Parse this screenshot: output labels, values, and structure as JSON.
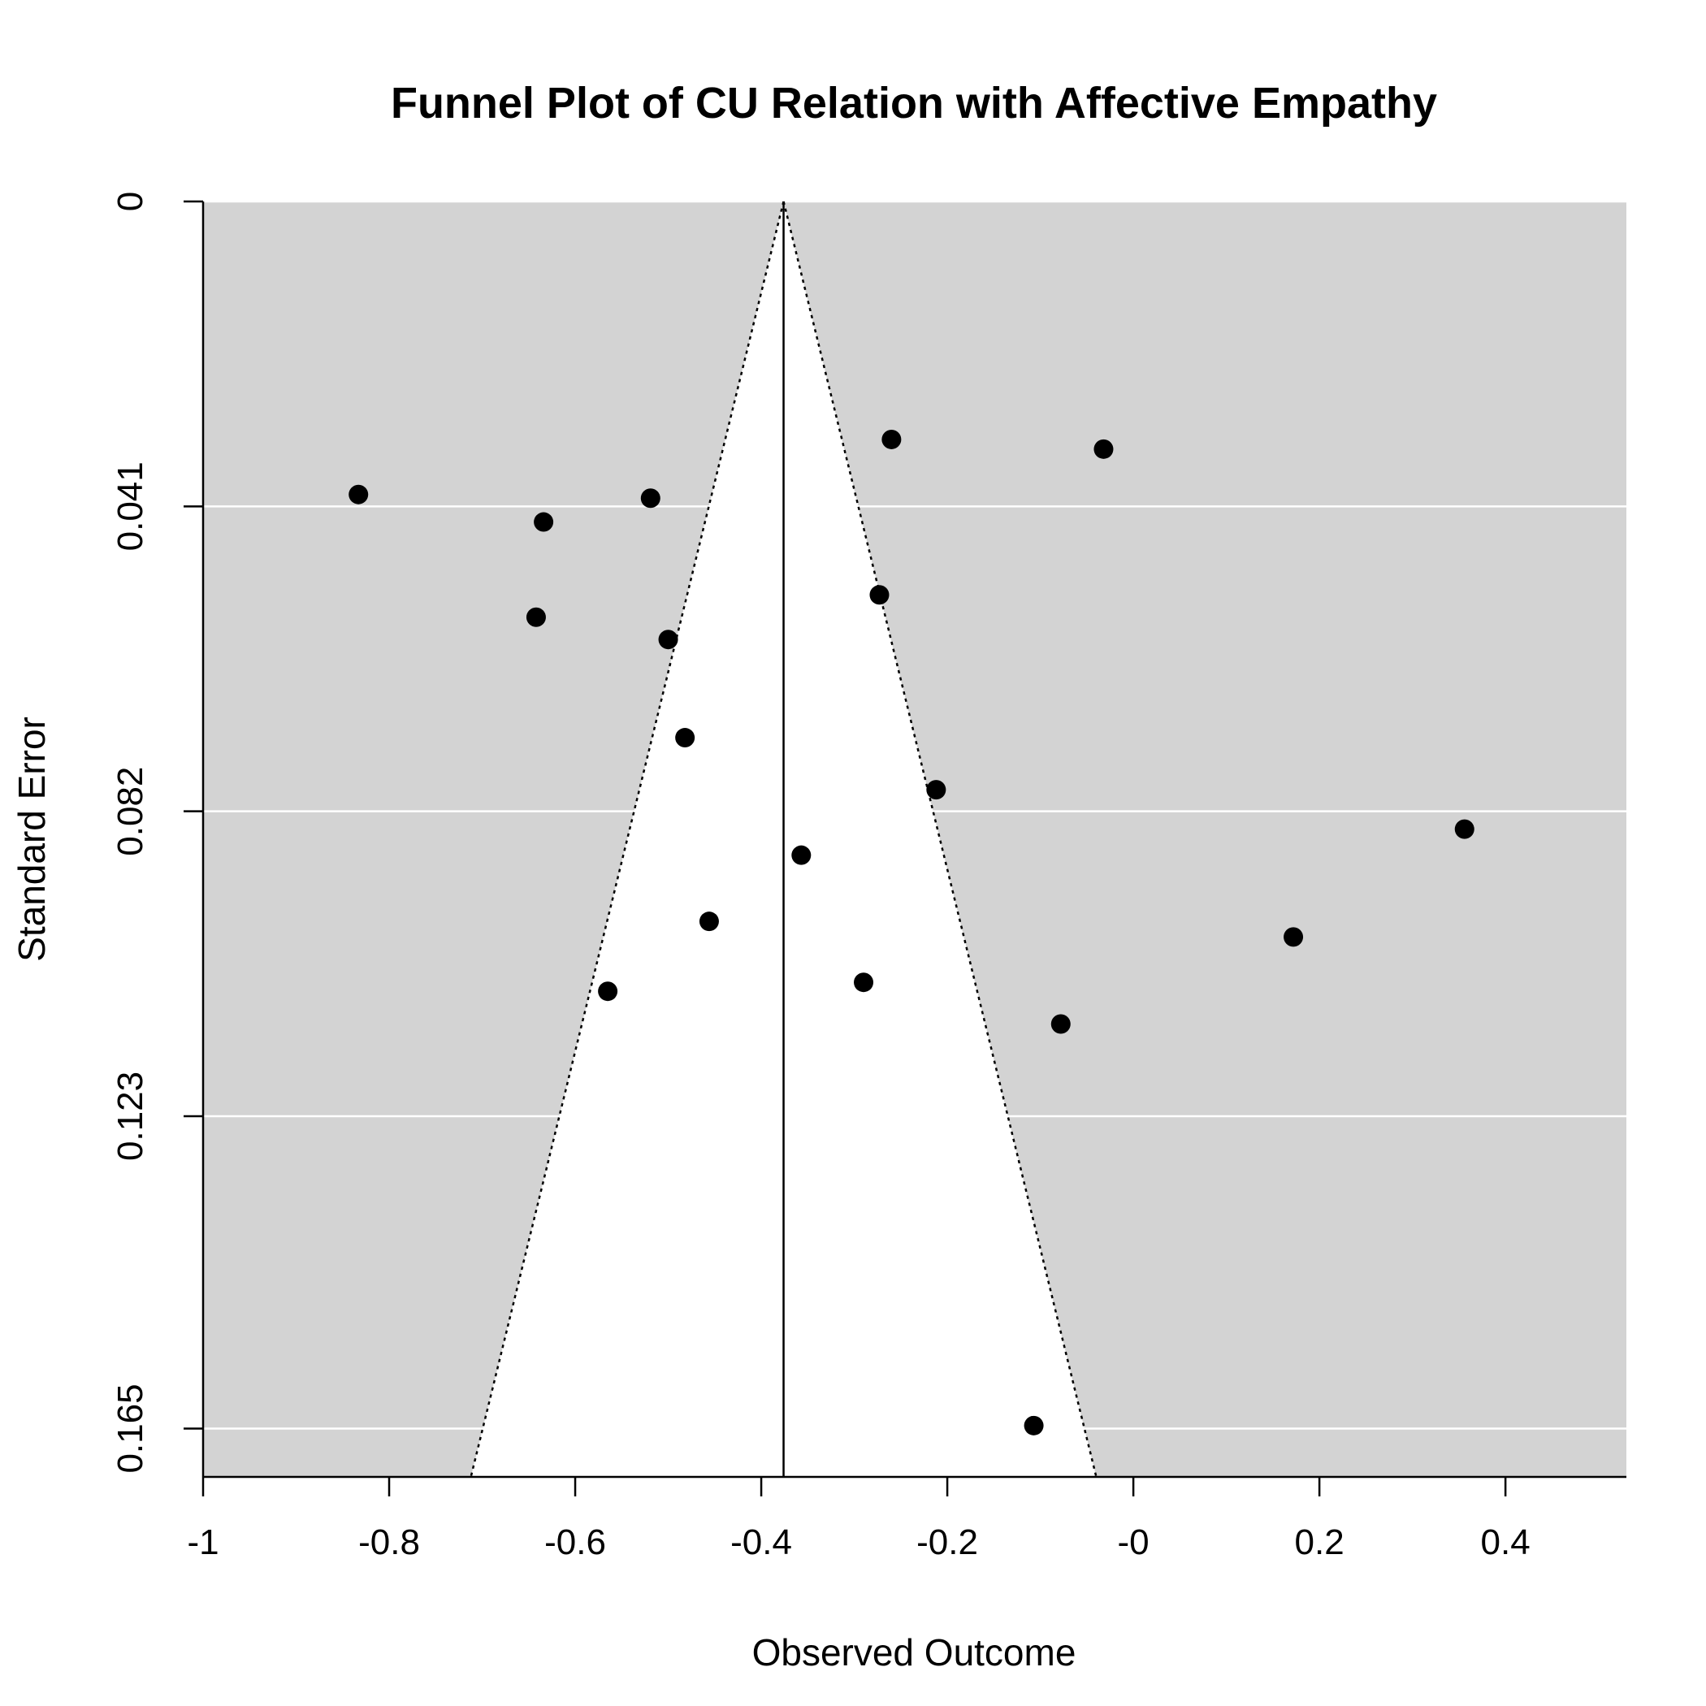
{
  "chart_data": {
    "type": "scatter",
    "title": "Funnel Plot of CU Relation with Affective Empathy",
    "xlabel": "Observed Outcome",
    "ylabel": "Standard Error",
    "xlim": [
      -1.0,
      0.53
    ],
    "ylim": [
      0,
      0.1715
    ],
    "y_reversed": true,
    "x_ticks": [
      -1,
      -0.8,
      -0.6,
      -0.4,
      -0.2,
      0,
      0.2,
      0.4
    ],
    "x_tick_labels": [
      "-1",
      "-0.8",
      "-0.6",
      "-0.4",
      "-0.2",
      "-0",
      "0.2",
      "0.4"
    ],
    "y_ticks": [
      0,
      0.041,
      0.082,
      0.123,
      0.165
    ],
    "y_tick_labels": [
      "0",
      "0.041",
      "0.082",
      "0.123",
      "0.165"
    ],
    "grid": "horizontal",
    "summary_estimate": -0.376,
    "funnel": {
      "z": 1.96,
      "line_style": "dotted"
    },
    "colors": {
      "region": "#d3d3d3",
      "funnel_fill": "#ffffff",
      "grid": "#ffffff",
      "points": "#000000"
    },
    "points": [
      {
        "x": -0.833,
        "y": 0.0394
      },
      {
        "x": -0.634,
        "y": 0.0431
      },
      {
        "x": -0.519,
        "y": 0.0399
      },
      {
        "x": -0.642,
        "y": 0.0559
      },
      {
        "x": -0.5,
        "y": 0.0589
      },
      {
        "x": -0.482,
        "y": 0.0721
      },
      {
        "x": -0.26,
        "y": 0.032
      },
      {
        "x": -0.032,
        "y": 0.0333
      },
      {
        "x": -0.273,
        "y": 0.0529
      },
      {
        "x": -0.212,
        "y": 0.0791
      },
      {
        "x": -0.357,
        "y": 0.0879
      },
      {
        "x": -0.456,
        "y": 0.0968
      },
      {
        "x": -0.565,
        "y": 0.1062
      },
      {
        "x": -0.29,
        "y": 0.105
      },
      {
        "x": -0.078,
        "y": 0.1106
      },
      {
        "x": 0.172,
        "y": 0.0989
      },
      {
        "x": 0.356,
        "y": 0.0844
      },
      {
        "x": -0.107,
        "y": 0.1646
      }
    ]
  }
}
